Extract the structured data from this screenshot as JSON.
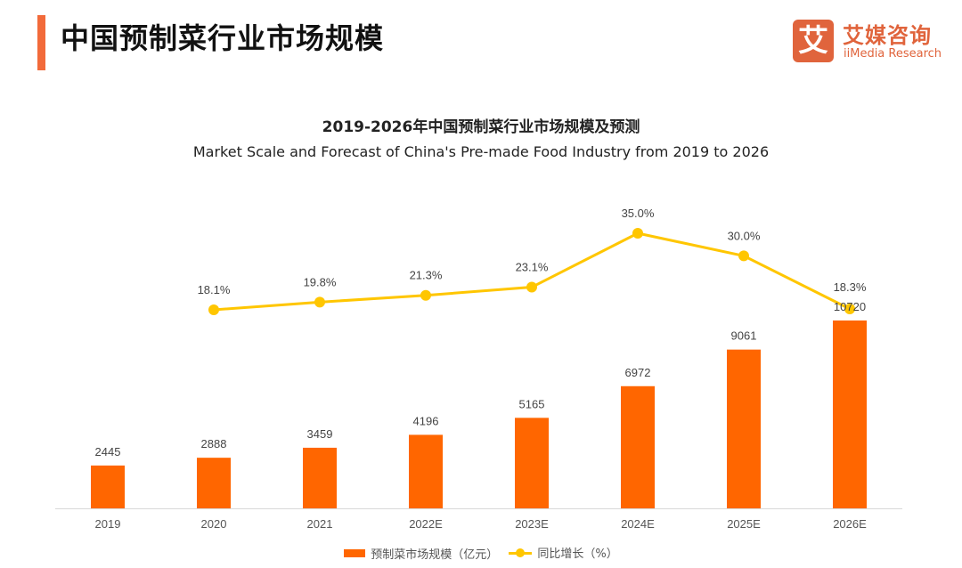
{
  "header": {
    "title": "中国预制菜行业市场规模",
    "logo": {
      "mark": "艾",
      "name_cn": "艾媒咨询",
      "name_en": "iiMedia Research"
    }
  },
  "colors": {
    "accent": "#f26a3a",
    "bar": "#ff6600",
    "line": "#ffc600",
    "brand": "#e0643c"
  },
  "chart_data": {
    "type": "bar",
    "title": "2019-2026年中国预制菜行业市场规模及预测",
    "subtitle": "Market Scale and Forecast of China's Pre-made Food Industry from 2019 to 2026",
    "xlabel": "",
    "ylabel": "",
    "categories": [
      "2019",
      "2020",
      "2021",
      "2022E",
      "2023E",
      "2024E",
      "2025E",
      "2026E"
    ],
    "series": [
      {
        "name": "预制菜市场规模（亿元）",
        "type": "bar",
        "values": [
          2445,
          2888,
          3459,
          4196,
          5165,
          6972,
          9061,
          10720
        ],
        "labels": [
          "2445",
          "2888",
          "3459",
          "4196",
          "5165",
          "6972",
          "9061",
          "10720"
        ]
      },
      {
        "name": "同比增长（%）",
        "type": "line",
        "values": [
          null,
          18.1,
          19.8,
          21.3,
          23.1,
          35.0,
          30.0,
          18.3
        ],
        "labels": [
          "",
          "18.1%",
          "19.8%",
          "21.3%",
          "23.1%",
          "35.0%",
          "30.0%",
          "18.3%"
        ]
      }
    ],
    "grid": false,
    "legend_position": "bottom-center",
    "ylim_bar": [
      0,
      10720
    ],
    "ylim_line": [
      0,
      35
    ]
  }
}
